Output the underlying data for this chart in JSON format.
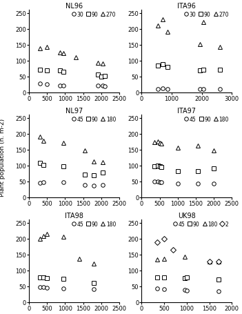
{
  "subplots": [
    {
      "title": "NL96",
      "legend_vals": [
        "30",
        "90",
        "270"
      ],
      "x_max": 2500,
      "xticks": [
        0,
        500,
        1000,
        1500,
        2000,
        2500
      ],
      "series": {
        "circle": [
          300,
          500,
          850,
          950,
          1900,
          2050,
          2100
        ],
        "circle_y": [
          27,
          25,
          22,
          20,
          22,
          20,
          18
        ],
        "square": [
          300,
          500,
          850,
          950,
          1900,
          2000,
          2100
        ],
        "square_y": [
          72,
          68,
          68,
          65,
          55,
          50,
          52
        ],
        "triangle": [
          300,
          500,
          850,
          950,
          1300,
          1900,
          2050
        ],
        "triangle_y": [
          138,
          143,
          125,
          122,
          110,
          93,
          90
        ]
      }
    },
    {
      "title": "ITA96",
      "legend_vals": [
        "30",
        "90",
        "270"
      ],
      "x_max": 3000,
      "xticks": [
        0,
        1000,
        2000,
        3000
      ],
      "series": {
        "circle": [
          550,
          700,
          850,
          1950,
          2050,
          2600
        ],
        "circle_y": [
          10,
          12,
          10,
          10,
          10,
          10
        ],
        "square": [
          550,
          700,
          850,
          1950,
          2050,
          2600
        ],
        "square_y": [
          85,
          88,
          80,
          68,
          70,
          72
        ],
        "triangle": [
          550,
          700,
          850,
          1950,
          2050,
          2600
        ],
        "triangle_y": [
          210,
          230,
          190,
          152,
          220,
          143
        ]
      }
    },
    {
      "title": "NL97",
      "legend_vals": [
        "45",
        "90",
        "180"
      ],
      "x_max": 2500,
      "xticks": [
        0,
        500,
        1000,
        1500,
        2000,
        2500
      ],
      "series": {
        "circle": [
          300,
          400,
          950,
          1550,
          1800,
          2050
        ],
        "circle_y": [
          44,
          48,
          46,
          38,
          37,
          38
        ],
        "square": [
          300,
          400,
          950,
          1550,
          1800,
          2050
        ],
        "square_y": [
          107,
          102,
          97,
          72,
          68,
          78
        ],
        "triangle": [
          300,
          400,
          950,
          1550,
          1800,
          2050
        ],
        "triangle_y": [
          190,
          178,
          170,
          147,
          112,
          110
        ]
      }
    },
    {
      "title": "ITA97",
      "legend_vals": [
        "45",
        "90",
        "180"
      ],
      "x_max": 2500,
      "xticks": [
        0,
        500,
        1000,
        1500,
        2000,
        2500
      ],
      "series": {
        "circle": [
          350,
          450,
          500,
          550,
          1000,
          1550,
          2000
        ],
        "circle_y": [
          50,
          50,
          48,
          48,
          42,
          42,
          42
        ],
        "square": [
          350,
          450,
          500,
          550,
          1000,
          1550,
          2000
        ],
        "square_y": [
          97,
          100,
          96,
          95,
          82,
          82,
          90
        ],
        "triangle": [
          350,
          450,
          500,
          550,
          1000,
          1550,
          2000
        ],
        "triangle_y": [
          173,
          175,
          170,
          168,
          155,
          162,
          148
        ]
      }
    },
    {
      "title": "ITA98",
      "legend_vals": [
        "45",
        "90",
        "180"
      ],
      "x_max": 2500,
      "xticks": [
        0,
        500,
        1000,
        1500,
        2000,
        2500
      ],
      "series": {
        "circle": [
          300,
          400,
          500,
          950,
          1800
        ],
        "circle_y": [
          48,
          46,
          44,
          42,
          40
        ],
        "square": [
          300,
          400,
          500,
          950,
          1800
        ],
        "square_y": [
          78,
          78,
          76,
          74,
          60
        ],
        "triangle": [
          300,
          400,
          500,
          950,
          1400,
          1800
        ],
        "triangle_y": [
          200,
          207,
          215,
          205,
          136,
          120
        ]
      }
    },
    {
      "title": "UK98",
      "legend_vals": [
        "45",
        "90",
        "180",
        "2"
      ],
      "x_max": 2000,
      "xticks": [
        0,
        500,
        1000,
        1500,
        2000
      ],
      "has_diamond": true,
      "series": {
        "circle": [
          350,
          500,
          950,
          1000,
          1700
        ],
        "circle_y": [
          42,
          40,
          38,
          36,
          35
        ],
        "square": [
          350,
          500,
          950,
          1000,
          1700
        ],
        "square_y": [
          78,
          78,
          75,
          78,
          72
        ],
        "triangle": [
          350,
          500,
          950,
          1500,
          1700
        ],
        "triangle_y": [
          134,
          136,
          142,
          128,
          128
        ],
        "diamond": [
          350,
          500,
          700,
          1500,
          1700
        ],
        "diamond_y": [
          188,
          200,
          165,
          128,
          128
        ]
      }
    }
  ],
  "ylabel": "Plant population (n. m-2)",
  "yticks": [
    0,
    50,
    100,
    150,
    200,
    250
  ],
  "ylim": [
    0,
    260
  ],
  "figsize": [
    3.51,
    4.56
  ],
  "dpi": 100,
  "markersize": 4,
  "markersize_tri": 5,
  "markerfacecolor": "white",
  "markeredgecolor": "black",
  "markeredgewidth": 0.7,
  "fontsize_title": 7,
  "fontsize_tick": 6,
  "fontsize_legend": 5.5,
  "fontsize_ylabel": 6.5
}
